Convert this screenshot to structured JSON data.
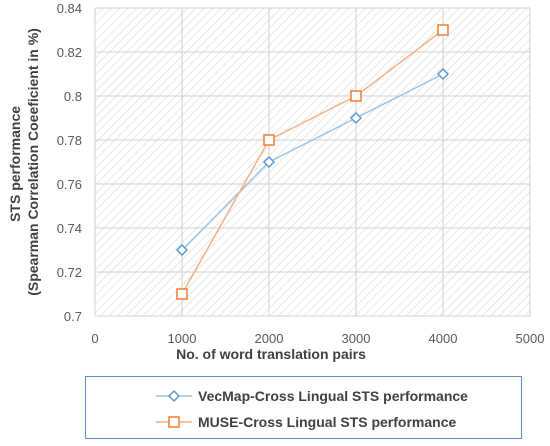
{
  "chart_data": {
    "type": "line",
    "xlabel": "No. of word translation pairs",
    "ylabel_line1": "STS performance",
    "ylabel_line2": "(Spearman Correlation Coeeficient in %)",
    "xlim": [
      0,
      5000
    ],
    "ylim": [
      0.7,
      0.84
    ],
    "xticks": [
      0,
      1000,
      2000,
      3000,
      4000,
      5000
    ],
    "yticks": [
      0.7,
      0.72,
      0.74,
      0.76,
      0.78,
      0.8,
      0.82,
      0.84
    ],
    "yticklabels": [
      "0.7",
      "0.72",
      "0.74",
      "0.76",
      "0.78",
      "0.8",
      "0.82",
      "0.84"
    ],
    "grid": "diagonal hatch background",
    "legend_position": "bottom",
    "series": [
      {
        "name": "VecMap-Cross Lingual STS performance",
        "marker": "diamond",
        "color": "#9dc3e6",
        "x": [
          1000,
          2000,
          3000,
          4000
        ],
        "y": [
          0.73,
          0.77,
          0.79,
          0.81
        ]
      },
      {
        "name": "MUSE-Cross Lingual STS performance",
        "marker": "square",
        "color": "#f4b183",
        "x": [
          1000,
          2000,
          3000,
          4000
        ],
        "y": [
          0.71,
          0.78,
          0.8,
          0.83
        ]
      }
    ]
  }
}
